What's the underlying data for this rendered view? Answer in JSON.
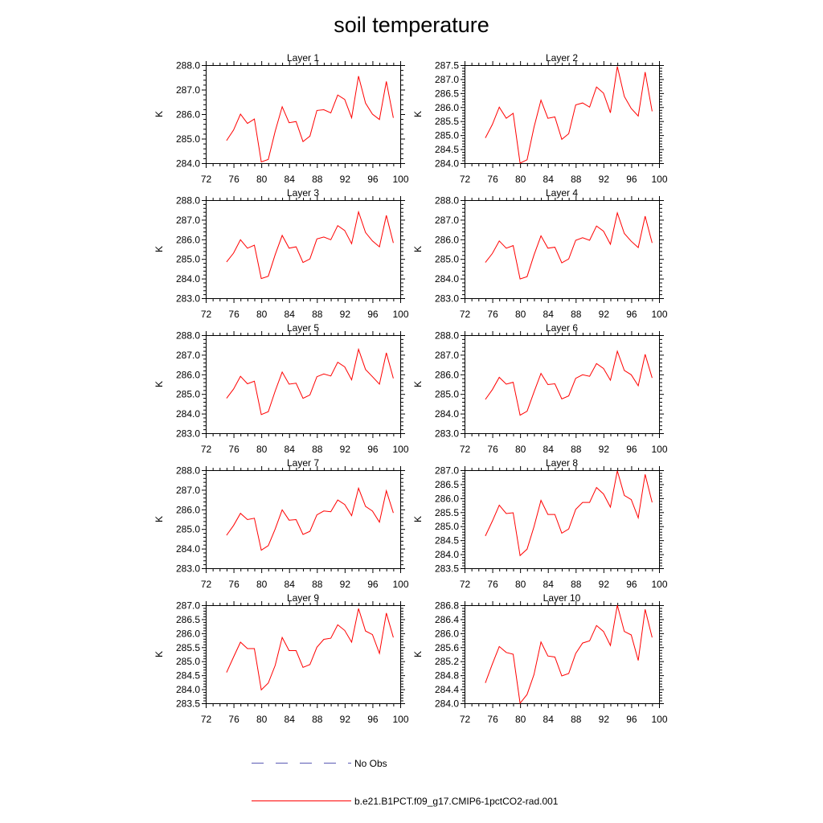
{
  "title": "soil temperature",
  "colors": {
    "model": "#ff0000",
    "obs": "#5a5ab4",
    "axis": "#000000"
  },
  "legend": {
    "obs_label": "No Obs",
    "model_label": "b.e21.B1PCT.f09_g17.CMIP6-1pctCO2-rad.001"
  },
  "chart_data": [
    {
      "type": "line",
      "title": "Layer 1",
      "ylabel": "K",
      "xlim": [
        72,
        100
      ],
      "ylim": [
        284.0,
        288.0
      ],
      "xticks": [
        "72",
        "76",
        "80",
        "84",
        "88",
        "92",
        "96",
        "100"
      ],
      "yticks": [
        "284.0",
        "285.0",
        "286.0",
        "287.0",
        "288.0"
      ],
      "series": [
        {
          "x": [
            75,
            76,
            77,
            78,
            79,
            80,
            81,
            82,
            83,
            84,
            85,
            86,
            87,
            88,
            89,
            90,
            91,
            92,
            93,
            94,
            95,
            96,
            97,
            98,
            99
          ],
          "values": [
            284.92,
            285.35,
            286.0,
            285.62,
            285.8,
            284.05,
            284.15,
            285.3,
            286.3,
            285.65,
            285.7,
            284.88,
            285.1,
            286.15,
            286.18,
            286.05,
            286.78,
            286.6,
            285.85,
            287.55,
            286.45,
            286.0,
            285.78,
            287.33,
            285.85
          ]
        }
      ]
    },
    {
      "type": "line",
      "title": "Layer 2",
      "ylabel": "K",
      "xlim": [
        72,
        100
      ],
      "ylim": [
        284.0,
        287.5
      ],
      "xticks": [
        "72",
        "76",
        "80",
        "84",
        "88",
        "92",
        "96",
        "100"
      ],
      "yticks": [
        "284.0",
        "284.5",
        "285.0",
        "285.5",
        "286.0",
        "286.5",
        "287.0",
        "287.5"
      ],
      "series": [
        {
          "x": [
            75,
            76,
            77,
            78,
            79,
            80,
            81,
            82,
            83,
            84,
            85,
            86,
            87,
            88,
            89,
            90,
            91,
            92,
            93,
            94,
            95,
            96,
            97,
            98,
            99
          ],
          "values": [
            284.9,
            285.38,
            286.0,
            285.6,
            285.78,
            284.0,
            284.12,
            285.28,
            286.25,
            285.6,
            285.65,
            284.85,
            285.05,
            286.08,
            286.15,
            286.0,
            286.72,
            286.5,
            285.8,
            287.45,
            286.38,
            285.95,
            285.68,
            287.25,
            285.85
          ]
        }
      ]
    },
    {
      "type": "line",
      "title": "Layer 3",
      "ylabel": "K",
      "xlim": [
        72,
        100
      ],
      "ylim": [
        283.0,
        288.0
      ],
      "xticks": [
        "72",
        "76",
        "80",
        "84",
        "88",
        "92",
        "96",
        "100"
      ],
      "yticks": [
        "283.0",
        "284.0",
        "285.0",
        "286.0",
        "287.0",
        "288.0"
      ],
      "series": [
        {
          "x": [
            75,
            76,
            77,
            78,
            79,
            80,
            81,
            82,
            83,
            84,
            85,
            86,
            87,
            88,
            89,
            90,
            91,
            92,
            93,
            94,
            95,
            96,
            97,
            98,
            99
          ],
          "values": [
            284.85,
            285.3,
            285.98,
            285.55,
            285.7,
            284.0,
            284.12,
            285.22,
            286.2,
            285.55,
            285.62,
            284.82,
            285.0,
            286.02,
            286.12,
            285.98,
            286.7,
            286.45,
            285.78,
            287.4,
            286.35,
            285.92,
            285.62,
            287.22,
            285.82
          ]
        }
      ]
    },
    {
      "type": "line",
      "title": "Layer 4",
      "ylabel": "K",
      "xlim": [
        72,
        100
      ],
      "ylim": [
        283.0,
        288.0
      ],
      "xticks": [
        "72",
        "76",
        "80",
        "84",
        "88",
        "92",
        "96",
        "100"
      ],
      "yticks": [
        "283.0",
        "284.0",
        "285.0",
        "286.0",
        "287.0",
        "288.0"
      ],
      "series": [
        {
          "x": [
            75,
            76,
            77,
            78,
            79,
            80,
            81,
            82,
            83,
            84,
            85,
            86,
            87,
            88,
            89,
            90,
            91,
            92,
            93,
            94,
            95,
            96,
            97,
            98,
            99
          ],
          "values": [
            284.82,
            285.28,
            285.92,
            285.55,
            285.68,
            283.98,
            284.1,
            285.2,
            286.18,
            285.55,
            285.6,
            284.8,
            285.0,
            285.95,
            286.08,
            285.95,
            286.68,
            286.42,
            285.75,
            287.35,
            286.3,
            285.9,
            285.58,
            287.18,
            285.82
          ]
        }
      ]
    },
    {
      "type": "line",
      "title": "Layer 5",
      "ylabel": "K",
      "xlim": [
        72,
        100
      ],
      "ylim": [
        283.0,
        288.0
      ],
      "xticks": [
        "72",
        "76",
        "80",
        "84",
        "88",
        "92",
        "96",
        "100"
      ],
      "yticks": [
        "283.0",
        "284.0",
        "285.0",
        "286.0",
        "287.0",
        "288.0"
      ],
      "series": [
        {
          "x": [
            75,
            76,
            77,
            78,
            79,
            80,
            81,
            82,
            83,
            84,
            85,
            86,
            87,
            88,
            89,
            90,
            91,
            92,
            93,
            94,
            95,
            96,
            97,
            98,
            99
          ],
          "values": [
            284.78,
            285.25,
            285.9,
            285.52,
            285.65,
            283.95,
            284.1,
            285.15,
            286.12,
            285.5,
            285.55,
            284.78,
            284.95,
            285.88,
            286.02,
            285.92,
            286.62,
            286.38,
            285.72,
            287.28,
            286.25,
            285.88,
            285.5,
            287.1,
            285.8
          ]
        }
      ]
    },
    {
      "type": "line",
      "title": "Layer 6",
      "ylabel": "K",
      "xlim": [
        72,
        100
      ],
      "ylim": [
        283.0,
        288.0
      ],
      "xticks": [
        "72",
        "76",
        "80",
        "84",
        "88",
        "92",
        "96",
        "100"
      ],
      "yticks": [
        "283.0",
        "284.0",
        "285.0",
        "286.0",
        "287.0",
        "288.0"
      ],
      "series": [
        {
          "x": [
            75,
            76,
            77,
            78,
            79,
            80,
            81,
            82,
            83,
            84,
            85,
            86,
            87,
            88,
            89,
            90,
            91,
            92,
            93,
            94,
            95,
            96,
            97,
            98,
            99
          ],
          "values": [
            284.72,
            285.22,
            285.85,
            285.5,
            285.6,
            283.92,
            284.12,
            285.1,
            286.05,
            285.48,
            285.52,
            284.75,
            284.9,
            285.8,
            285.98,
            285.9,
            286.55,
            286.3,
            285.7,
            287.18,
            286.2,
            285.98,
            285.42,
            287.02,
            285.82
          ]
        }
      ]
    },
    {
      "type": "line",
      "title": "Layer 7",
      "ylabel": "K",
      "xlim": [
        72,
        100
      ],
      "ylim": [
        283.0,
        288.0
      ],
      "xticks": [
        "72",
        "76",
        "80",
        "84",
        "88",
        "92",
        "96",
        "100"
      ],
      "yticks": [
        "283.0",
        "284.0",
        "285.0",
        "286.0",
        "287.0",
        "288.0"
      ],
      "series": [
        {
          "x": [
            75,
            76,
            77,
            78,
            79,
            80,
            81,
            82,
            83,
            84,
            85,
            86,
            87,
            88,
            89,
            90,
            91,
            92,
            93,
            94,
            95,
            96,
            97,
            98,
            99
          ],
          "values": [
            284.68,
            285.18,
            285.8,
            285.48,
            285.55,
            283.92,
            284.15,
            285.0,
            285.98,
            285.45,
            285.48,
            284.72,
            284.88,
            285.72,
            285.92,
            285.88,
            286.48,
            286.25,
            285.68,
            287.08,
            286.15,
            285.92,
            285.35,
            286.95,
            285.82
          ]
        }
      ]
    },
    {
      "type": "line",
      "title": "Layer 8",
      "ylabel": "K",
      "xlim": [
        72,
        100
      ],
      "ylim": [
        283.5,
        287.0
      ],
      "xticks": [
        "72",
        "76",
        "80",
        "84",
        "88",
        "92",
        "96",
        "100"
      ],
      "yticks": [
        "283.5",
        "284.0",
        "284.5",
        "285.0",
        "285.5",
        "286.0",
        "286.5",
        "287.0"
      ],
      "series": [
        {
          "x": [
            75,
            76,
            77,
            78,
            79,
            80,
            81,
            82,
            83,
            84,
            85,
            86,
            87,
            88,
            89,
            90,
            91,
            92,
            93,
            94,
            95,
            96,
            97,
            98,
            99
          ],
          "values": [
            284.65,
            285.18,
            285.75,
            285.45,
            285.48,
            283.95,
            284.18,
            284.98,
            285.92,
            285.42,
            285.42,
            284.75,
            284.9,
            285.6,
            285.85,
            285.85,
            286.38,
            286.15,
            285.68,
            286.98,
            286.1,
            285.95,
            285.3,
            286.85,
            285.85
          ]
        }
      ]
    },
    {
      "type": "line",
      "title": "Layer 9",
      "ylabel": "K",
      "xlim": [
        72,
        100
      ],
      "ylim": [
        283.5,
        287.0
      ],
      "xticks": [
        "72",
        "76",
        "80",
        "84",
        "88",
        "92",
        "96",
        "100"
      ],
      "yticks": [
        "283.5",
        "284.0",
        "284.5",
        "285.0",
        "285.5",
        "286.0",
        "286.5",
        "287.0"
      ],
      "series": [
        {
          "x": [
            75,
            76,
            77,
            78,
            79,
            80,
            81,
            82,
            83,
            84,
            85,
            86,
            87,
            88,
            89,
            90,
            91,
            92,
            93,
            94,
            95,
            96,
            97,
            98,
            99
          ],
          "values": [
            284.6,
            285.15,
            285.68,
            285.45,
            285.45,
            283.98,
            284.22,
            284.85,
            285.85,
            285.38,
            285.38,
            284.78,
            284.88,
            285.5,
            285.78,
            285.82,
            286.3,
            286.1,
            285.68,
            286.88,
            286.08,
            285.95,
            285.28,
            286.72,
            285.85
          ]
        }
      ]
    },
    {
      "type": "line",
      "title": "Layer 10",
      "ylabel": "K",
      "xlim": [
        72,
        100
      ],
      "ylim": [
        284.0,
        286.8
      ],
      "xticks": [
        "72",
        "76",
        "80",
        "84",
        "88",
        "92",
        "96",
        "100"
      ],
      "yticks": [
        "284.0",
        "284.4",
        "284.8",
        "285.2",
        "285.6",
        "286.0",
        "286.4",
        "286.8"
      ],
      "series": [
        {
          "x": [
            75,
            76,
            77,
            78,
            79,
            80,
            81,
            82,
            83,
            84,
            85,
            86,
            87,
            88,
            89,
            90,
            91,
            92,
            93,
            94,
            95,
            96,
            97,
            98,
            99
          ],
          "values": [
            284.58,
            285.12,
            285.62,
            285.45,
            285.4,
            284.0,
            284.25,
            284.82,
            285.75,
            285.35,
            285.32,
            284.78,
            284.85,
            285.42,
            285.72,
            285.78,
            286.22,
            286.05,
            285.65,
            286.8,
            286.05,
            285.95,
            285.22,
            286.68,
            285.88
          ]
        }
      ]
    }
  ]
}
